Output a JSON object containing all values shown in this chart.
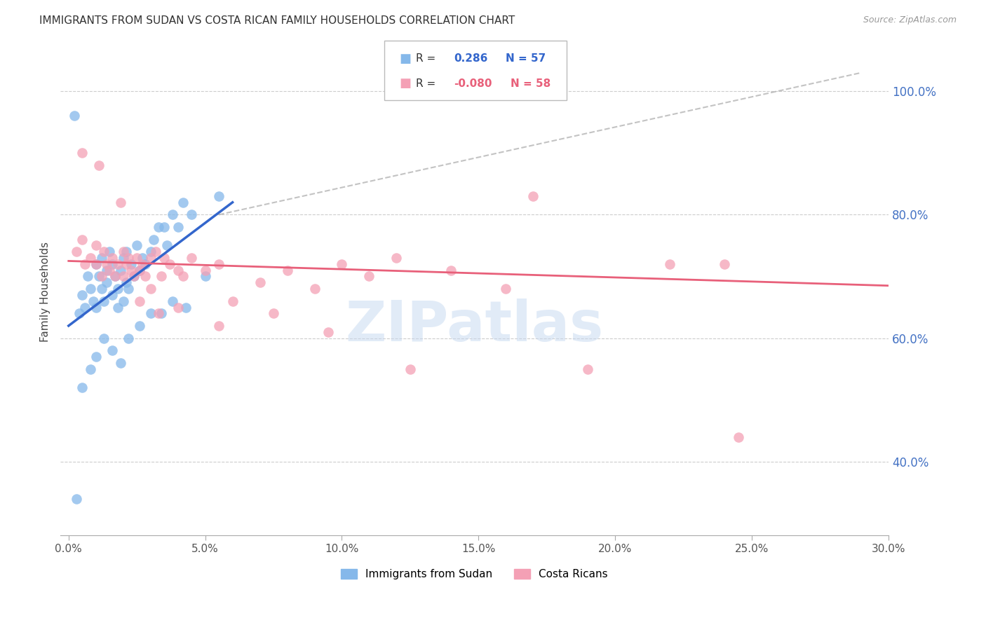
{
  "title": "IMMIGRANTS FROM SUDAN VS COSTA RICAN FAMILY HOUSEHOLDS CORRELATION CHART",
  "source": "Source: ZipAtlas.com",
  "ylabel_left": "Family Households",
  "x_ticks": [
    0.0,
    5.0,
    10.0,
    15.0,
    20.0,
    25.0,
    30.0
  ],
  "x_tick_labels": [
    "0.0%",
    "5.0%",
    "10.0%",
    "15.0%",
    "20.0%",
    "25.0%",
    "30.0%"
  ],
  "y_ticks_right": [
    40.0,
    60.0,
    80.0,
    100.0
  ],
  "y_tick_labels_right": [
    "40.0%",
    "60.0%",
    "80.0%",
    "100.0%"
  ],
  "xlim": [
    -0.3,
    30.0
  ],
  "ylim": [
    28.0,
    107.0
  ],
  "watermark": "ZIPatlas",
  "blue_color": "#85B8EA",
  "pink_color": "#F4A0B5",
  "blue_line_color": "#3366CC",
  "pink_line_color": "#E8607A",
  "ref_line_color": "#AAAAAA",
  "title_fontsize": 11,
  "axis_label_fontsize": 11,
  "tick_fontsize": 11,
  "blue_dots_x": [
    0.2,
    0.4,
    0.5,
    0.6,
    0.7,
    0.8,
    0.9,
    1.0,
    1.0,
    1.1,
    1.2,
    1.2,
    1.3,
    1.4,
    1.4,
    1.5,
    1.6,
    1.6,
    1.7,
    1.8,
    1.8,
    1.9,
    2.0,
    2.0,
    2.1,
    2.1,
    2.2,
    2.3,
    2.4,
    2.5,
    2.6,
    2.7,
    2.8,
    3.0,
    3.1,
    3.3,
    3.5,
    3.6,
    3.8,
    4.0,
    4.2,
    4.5,
    0.5,
    0.8,
    1.0,
    1.3,
    1.6,
    1.9,
    2.2,
    2.6,
    3.0,
    3.4,
    3.8,
    4.3,
    5.0,
    0.3,
    5.5
  ],
  "blue_dots_y": [
    96,
    64,
    67,
    65,
    70,
    68,
    66,
    72,
    65,
    70,
    68,
    73,
    66,
    69,
    71,
    74,
    67,
    72,
    70,
    68,
    65,
    71,
    73,
    66,
    69,
    74,
    68,
    72,
    70,
    75,
    71,
    73,
    72,
    74,
    76,
    78,
    78,
    75,
    80,
    78,
    82,
    80,
    52,
    55,
    57,
    60,
    58,
    56,
    60,
    62,
    64,
    64,
    66,
    65,
    70,
    34,
    83
  ],
  "pink_dots_x": [
    0.3,
    0.5,
    0.6,
    0.8,
    1.0,
    1.0,
    1.2,
    1.3,
    1.4,
    1.5,
    1.6,
    1.7,
    1.8,
    2.0,
    2.0,
    2.1,
    2.2,
    2.3,
    2.4,
    2.5,
    2.6,
    2.7,
    2.8,
    3.0,
    3.0,
    3.2,
    3.4,
    3.5,
    3.7,
    4.0,
    4.2,
    4.5,
    5.0,
    5.5,
    6.0,
    7.0,
    8.0,
    9.0,
    10.0,
    11.0,
    12.0,
    14.0,
    16.0,
    17.0,
    19.0,
    22.0,
    24.0,
    0.5,
    1.1,
    1.9,
    2.6,
    3.3,
    4.0,
    5.5,
    7.5,
    9.5,
    12.5,
    24.5
  ],
  "pink_dots_y": [
    74,
    76,
    72,
    73,
    75,
    72,
    70,
    74,
    72,
    71,
    73,
    70,
    72,
    70,
    74,
    72,
    73,
    71,
    70,
    73,
    71,
    72,
    70,
    73,
    68,
    74,
    70,
    73,
    72,
    71,
    70,
    73,
    71,
    72,
    66,
    69,
    71,
    68,
    72,
    70,
    73,
    71,
    68,
    83,
    55,
    72,
    72,
    90,
    88,
    82,
    66,
    64,
    65,
    62,
    64,
    61,
    55,
    44
  ],
  "blue_line_x0": 0.0,
  "blue_line_y0": 62.0,
  "blue_line_x1": 6.0,
  "blue_line_y1": 82.0,
  "pink_line_x0": 0.0,
  "pink_line_y0": 72.5,
  "pink_line_x1": 30.0,
  "pink_line_y1": 68.5,
  "ref_line_x0": 5.5,
  "ref_line_y0": 80.0,
  "ref_line_x1": 29.0,
  "ref_line_y1": 103.0,
  "legend_R1_val": "0.286",
  "legend_N1": "57",
  "legend_R2_val": "-0.080",
  "legend_N2": "58"
}
